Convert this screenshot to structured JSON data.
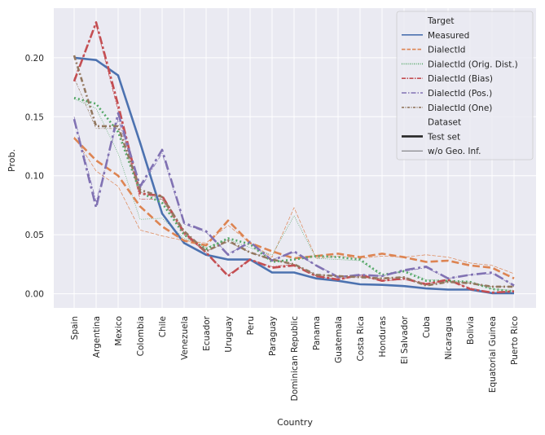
{
  "chart_data": {
    "type": "line",
    "xlabel": "Country",
    "ylabel": "Prob.",
    "ylim": [
      -0.012,
      0.242
    ],
    "yticks": [
      0.0,
      0.05,
      0.1,
      0.15,
      0.2
    ],
    "ytick_labels": [
      "0.00",
      "0.05",
      "0.10",
      "0.15",
      "0.20"
    ],
    "grid": true,
    "legend_position": "top-right",
    "categories": [
      "Spain",
      "Argentina",
      "Mexico",
      "Colombia",
      "Chile",
      "Venezuela",
      "Ecuador",
      "Uruguay",
      "Peru",
      "Paraguay",
      "Dominican Republic",
      "Panama",
      "Guatemala",
      "Costa Rica",
      "Honduras",
      "El Salvador",
      "Cuba",
      "Nicaragua",
      "Bolivia",
      "Equatorial Guinea",
      "Puerto Rico"
    ],
    "legend": {
      "target_title": "Target",
      "dataset_title": "Dataset",
      "dataset_entries": [
        "Test set",
        "w/o Geo. Inf."
      ]
    },
    "series": [
      {
        "name": "Measured",
        "dataset": "Test set",
        "color": "#4c72b0",
        "dash": "solid",
        "values": [
          0.2,
          0.198,
          0.185,
          0.128,
          0.068,
          0.043,
          0.033,
          0.029,
          0.029,
          0.018,
          0.018,
          0.013,
          0.011,
          0.008,
          0.0075,
          0.0065,
          0.0045,
          0.0035,
          0.0035,
          0.0005,
          0.0005
        ]
      },
      {
        "name": "DialectId",
        "dataset": "Test set",
        "color": "#dd8452",
        "dash": "dashed",
        "values": [
          0.132,
          0.113,
          0.1,
          0.074,
          0.057,
          0.045,
          0.041,
          0.062,
          0.043,
          0.036,
          0.03,
          0.032,
          0.034,
          0.031,
          0.034,
          0.031,
          0.027,
          0.028,
          0.024,
          0.022,
          0.013
        ]
      },
      {
        "name": "DialectId (Orig. Dist.)",
        "dataset": "Test set",
        "color": "#55a868",
        "dash": "dotted",
        "values": [
          0.166,
          0.161,
          0.137,
          0.086,
          0.077,
          0.05,
          0.038,
          0.047,
          0.042,
          0.027,
          0.029,
          0.032,
          0.031,
          0.029,
          0.016,
          0.019,
          0.011,
          0.011,
          0.01,
          0.004,
          0.002
        ]
      },
      {
        "name": "DialectId (Bias)",
        "dataset": "Test set",
        "color": "#c44e52",
        "dash": "dashdot",
        "values": [
          0.18,
          0.23,
          0.16,
          0.085,
          0.083,
          0.052,
          0.035,
          0.015,
          0.029,
          0.022,
          0.024,
          0.015,
          0.012,
          0.016,
          0.011,
          0.013,
          0.008,
          0.012,
          0.004,
          0.001,
          0.002
        ]
      },
      {
        "name": "DialectId (Pos.)",
        "dataset": "Test set",
        "color": "#8172b3",
        "dash": "dashdot2",
        "values": [
          0.148,
          0.073,
          0.153,
          0.091,
          0.122,
          0.06,
          0.053,
          0.033,
          0.044,
          0.028,
          0.036,
          0.024,
          0.014,
          0.016,
          0.015,
          0.02,
          0.023,
          0.013,
          0.016,
          0.018,
          0.007
        ]
      },
      {
        "name": "DialectId (One)",
        "dataset": "Test set",
        "color": "#937860",
        "dash": "dashdot3",
        "values": [
          0.202,
          0.142,
          0.142,
          0.088,
          0.082,
          0.053,
          0.036,
          0.045,
          0.035,
          0.029,
          0.025,
          0.016,
          0.015,
          0.014,
          0.013,
          0.014,
          0.007,
          0.01,
          0.009,
          0.006,
          0.006
        ]
      },
      {
        "name": "Measured",
        "dataset": "w/o Geo. Inf.",
        "color": "#4c72b0",
        "dash": "solid",
        "values": [
          0.2,
          0.198,
          0.185,
          0.128,
          0.068,
          0.043,
          0.033,
          0.029,
          0.029,
          0.018,
          0.018,
          0.013,
          0.011,
          0.008,
          0.0075,
          0.0065,
          0.0045,
          0.0035,
          0.0035,
          0.0005,
          0.0005
        ]
      },
      {
        "name": "DialectId",
        "dataset": "w/o Geo. Inf.",
        "color": "#dd8452",
        "dash": "dashed",
        "values": [
          0.133,
          0.104,
          0.091,
          0.054,
          0.049,
          0.045,
          0.043,
          0.058,
          0.043,
          0.031,
          0.073,
          0.03,
          0.032,
          0.03,
          0.032,
          0.031,
          0.033,
          0.031,
          0.026,
          0.024,
          0.017
        ]
      },
      {
        "name": "DialectId (Orig. Dist.)",
        "dataset": "w/o Geo. Inf.",
        "color": "#55a868",
        "dash": "dotted",
        "values": [
          0.165,
          0.157,
          0.119,
          0.063,
          0.064,
          0.047,
          0.039,
          0.046,
          0.039,
          0.033,
          0.066,
          0.03,
          0.029,
          0.028,
          0.015,
          0.02,
          0.012,
          0.011,
          0.01,
          0.004,
          0.003
        ]
      },
      {
        "name": "DialectId (Bias)",
        "dataset": "w/o Geo. Inf.",
        "color": "#c44e52",
        "dash": "dashdot",
        "values": [
          0.182,
          0.228,
          0.155,
          0.08,
          0.08,
          0.05,
          0.035,
          0.016,
          0.029,
          0.023,
          0.025,
          0.015,
          0.012,
          0.015,
          0.011,
          0.012,
          0.009,
          0.011,
          0.005,
          0.001,
          0.002
        ]
      },
      {
        "name": "DialectId (Pos.)",
        "dataset": "w/o Geo. Inf.",
        "color": "#8172b3",
        "dash": "dashdot2",
        "values": [
          0.15,
          0.078,
          0.148,
          0.089,
          0.119,
          0.059,
          0.052,
          0.034,
          0.043,
          0.029,
          0.035,
          0.024,
          0.015,
          0.016,
          0.015,
          0.019,
          0.022,
          0.013,
          0.016,
          0.017,
          0.007
        ]
      },
      {
        "name": "DialectId (One)",
        "dataset": "w/o Geo. Inf.",
        "color": "#937860",
        "dash": "dashdot3",
        "values": [
          0.183,
          0.14,
          0.14,
          0.086,
          0.08,
          0.052,
          0.036,
          0.044,
          0.035,
          0.029,
          0.025,
          0.016,
          0.015,
          0.014,
          0.013,
          0.014,
          0.007,
          0.01,
          0.009,
          0.006,
          0.006
        ]
      }
    ]
  }
}
